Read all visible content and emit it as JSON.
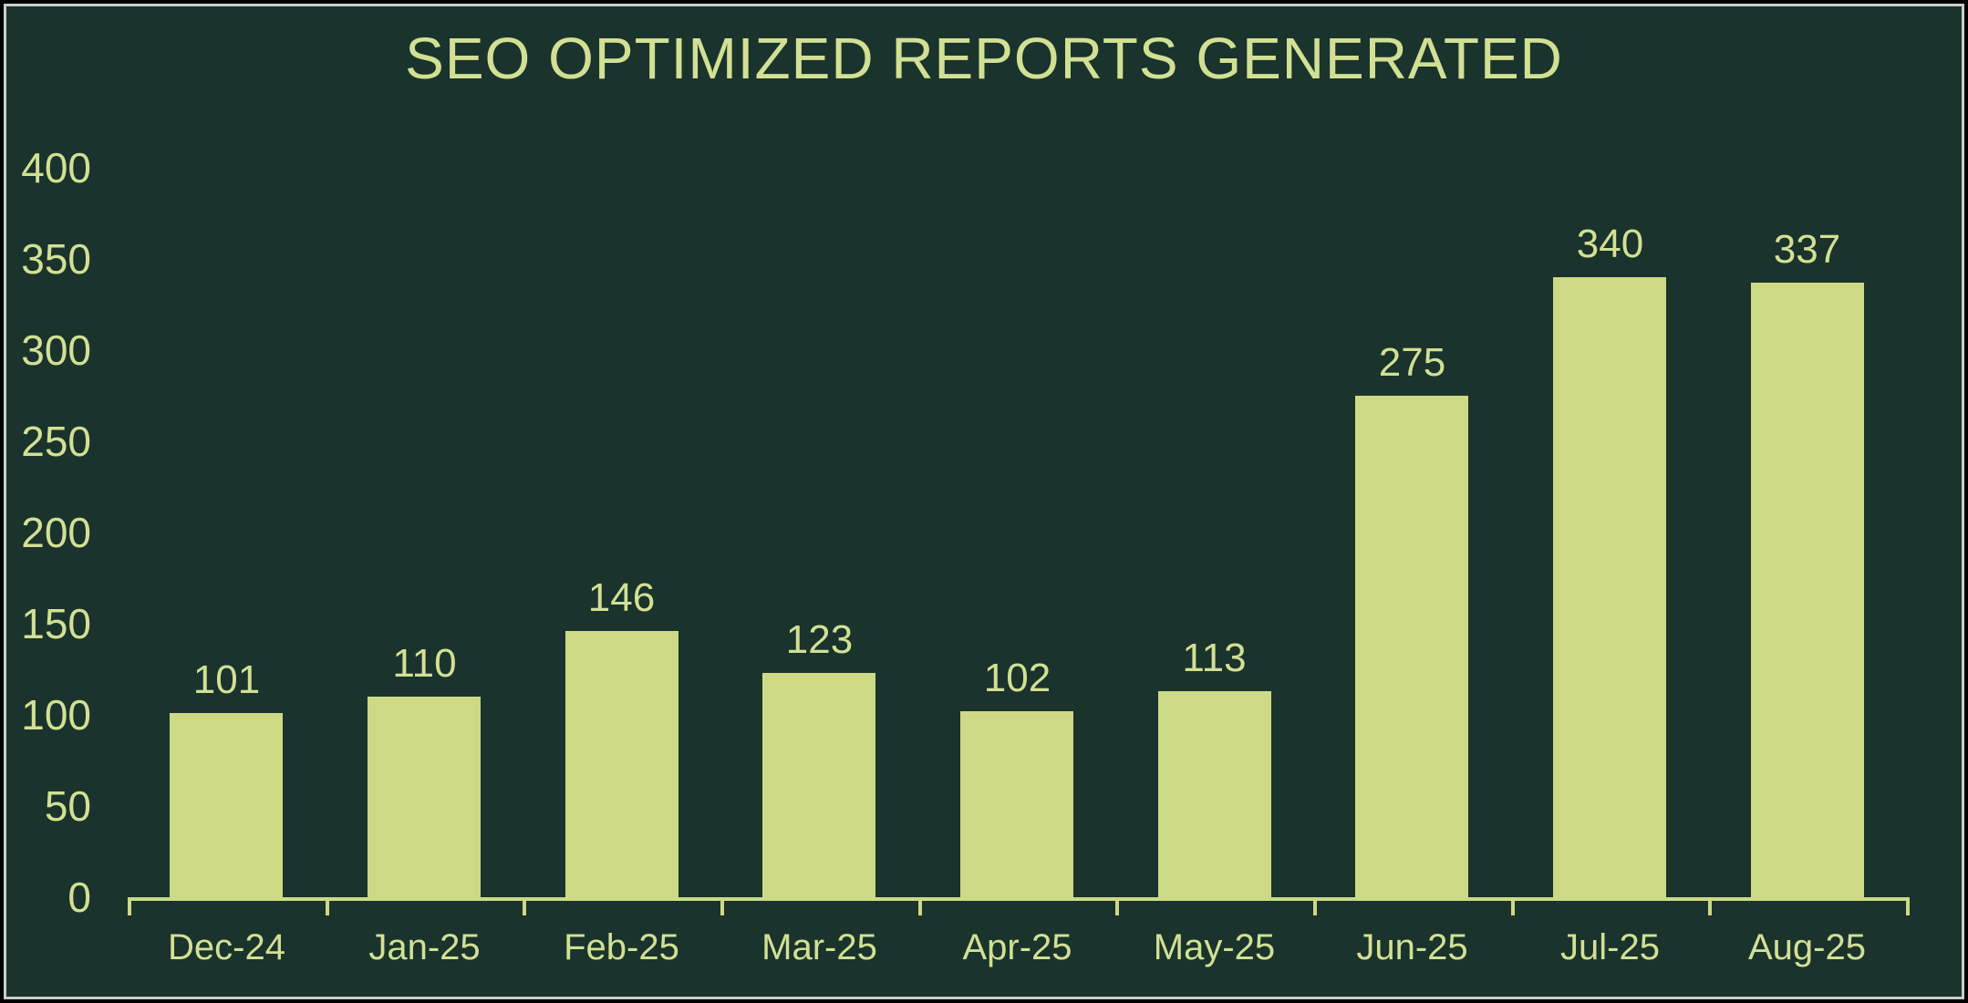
{
  "chart_data": {
    "type": "bar",
    "title": "SEO OPTIMIZED REPORTS GENERATED",
    "categories": [
      "Dec-24",
      "Jan-25",
      "Feb-25",
      "Mar-25",
      "Apr-25",
      "May-25",
      "Jun-25",
      "Jul-25",
      "Aug-25"
    ],
    "values": [
      101,
      110,
      146,
      123,
      102,
      113,
      275,
      340,
      337
    ],
    "xlabel": "",
    "ylabel": "",
    "ylim": [
      0,
      400
    ],
    "yticks": [
      0,
      50,
      100,
      150,
      200,
      250,
      300,
      350,
      400
    ],
    "grid": false,
    "legend": false,
    "data_labels": true,
    "bar_orientation": "vertical"
  },
  "colors": {
    "background": "#1a332c",
    "bar_fill": "#cdd985",
    "text": "#d2e094",
    "axis": "#cdd985",
    "frame_border": "#c9cdc9",
    "outer_border": "#000000"
  }
}
